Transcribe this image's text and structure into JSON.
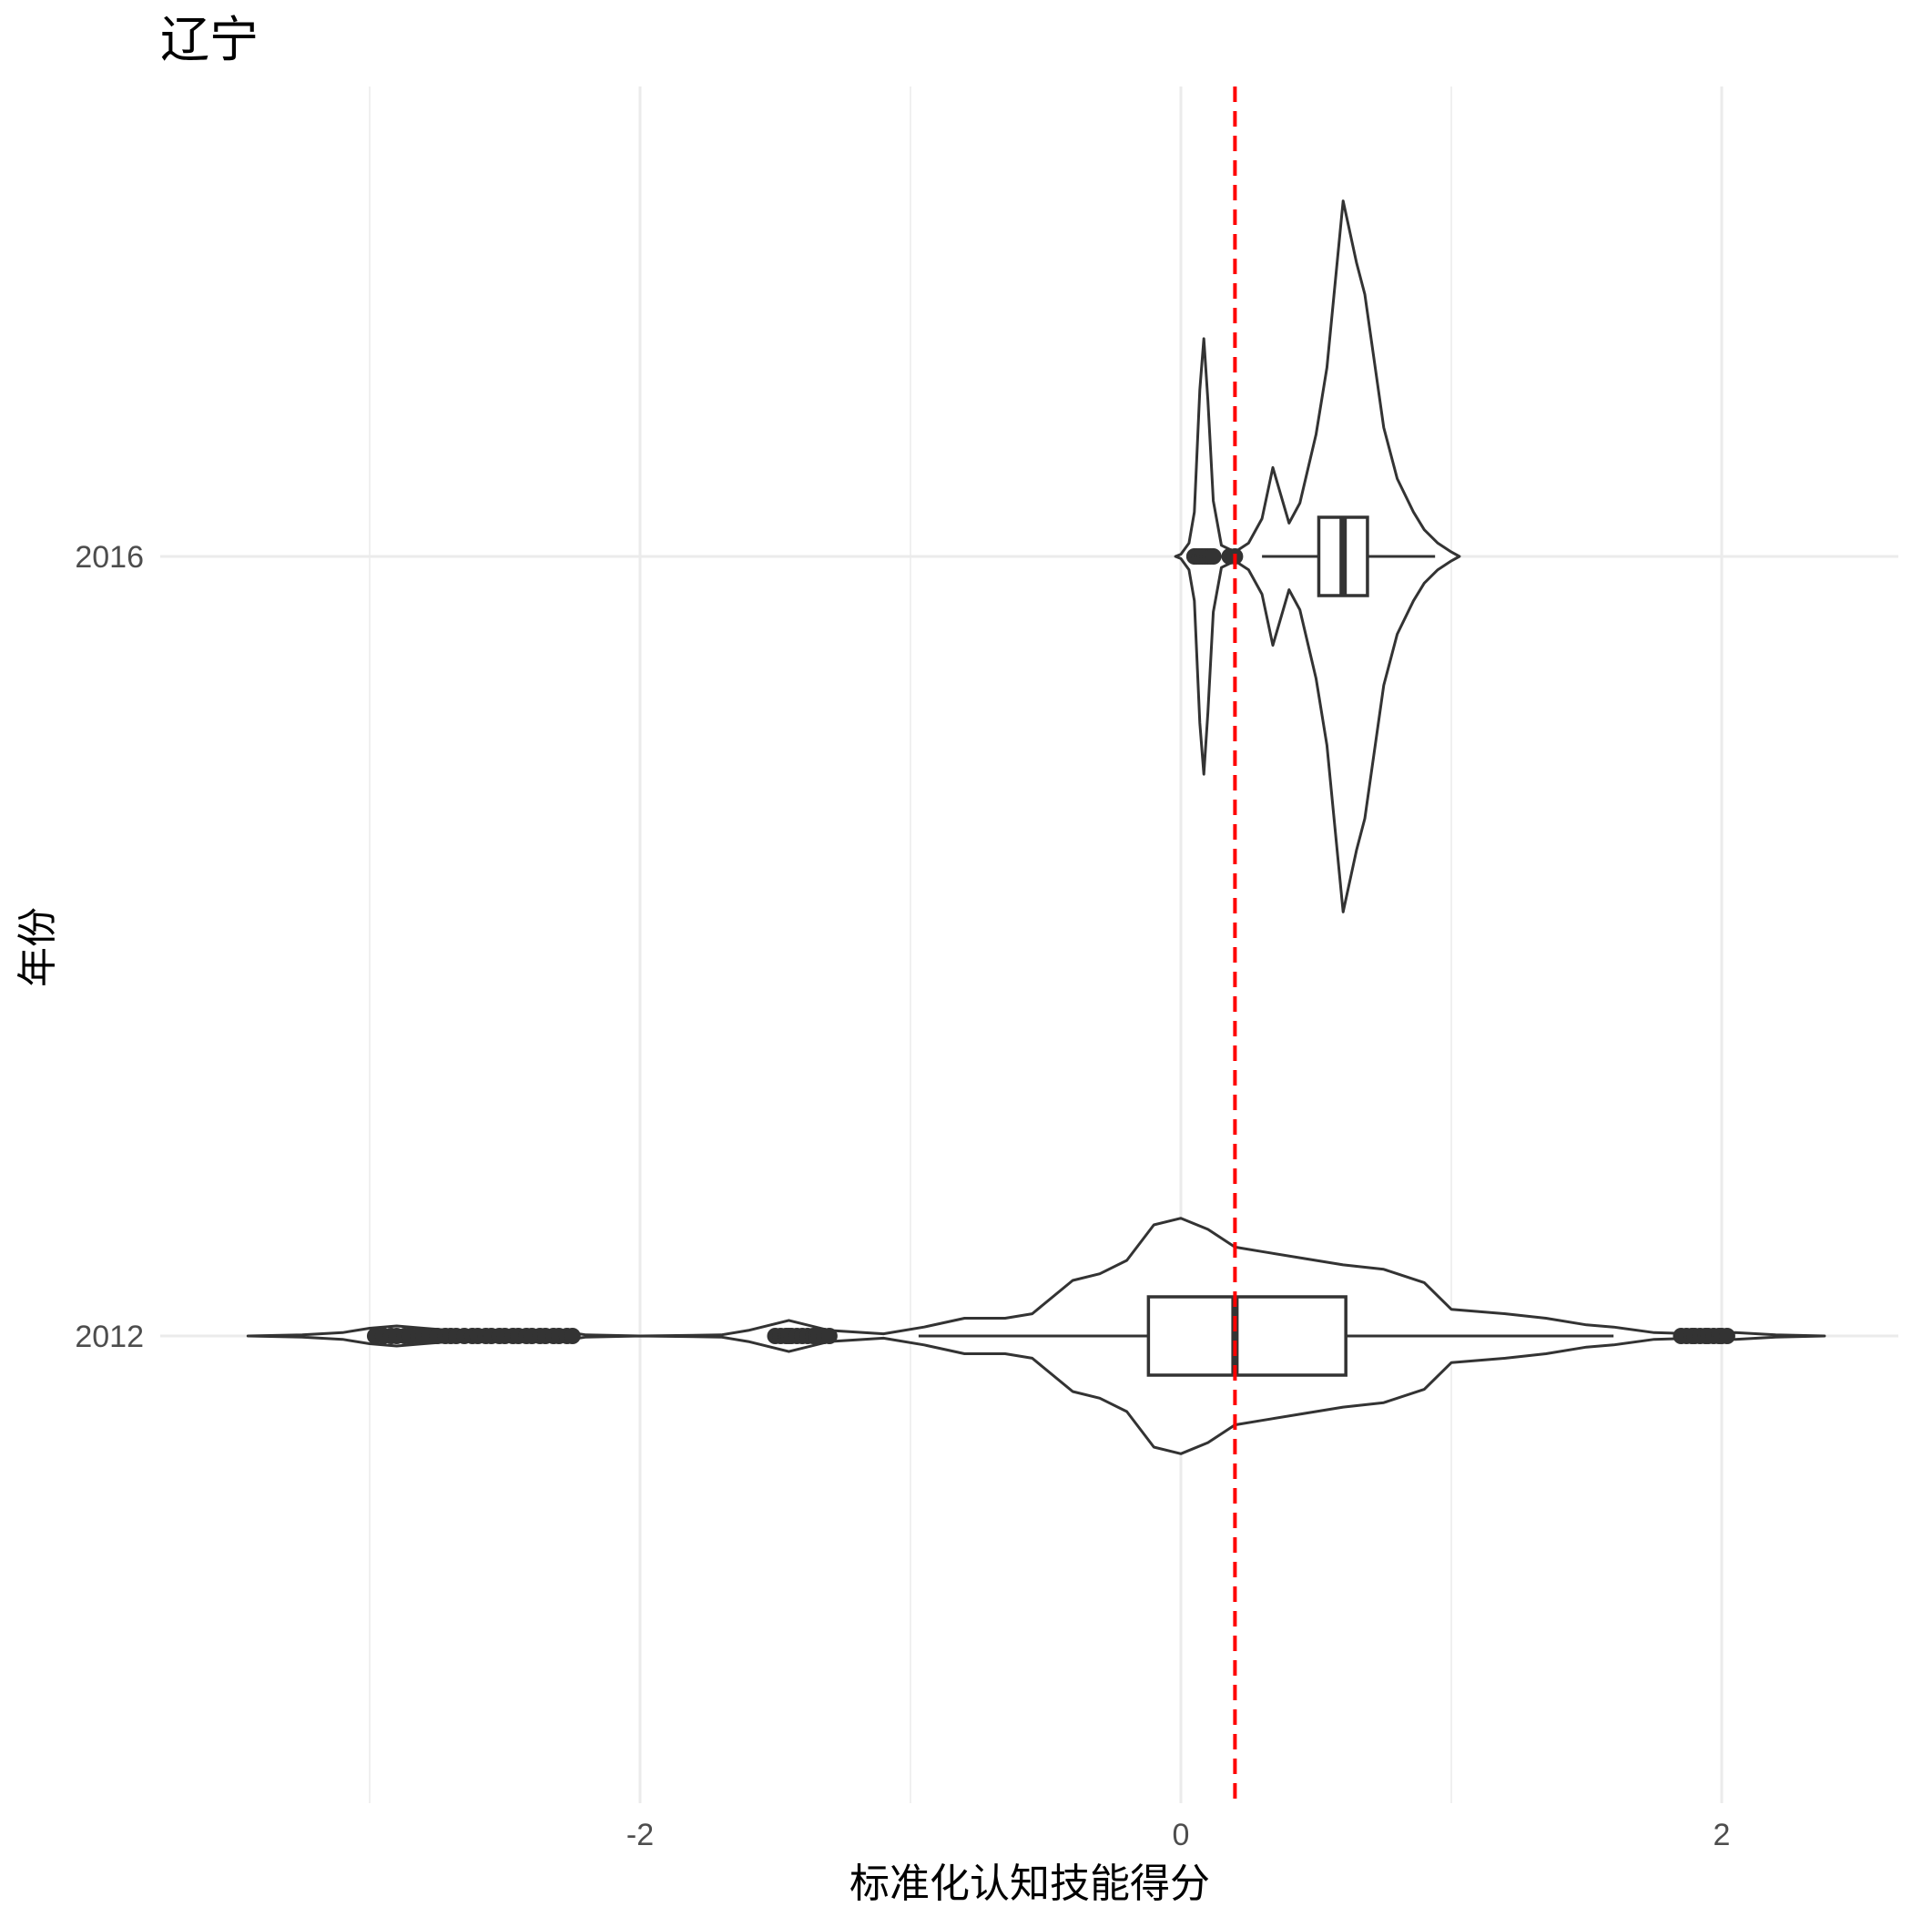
{
  "chart_data": {
    "type": "violin",
    "title": "辽宁",
    "xlabel": "标准化认知技能得分",
    "ylabel": "年份",
    "x_ticks": [
      -2,
      0,
      2
    ],
    "x_tick_labels": [
      "-2",
      "0",
      "2"
    ],
    "xlim": [
      -3.45,
      2.65
    ],
    "grid": true,
    "reference_line": {
      "x": 0.2,
      "style": "dashed",
      "color": "#ff0000"
    },
    "outline_color": "#333333",
    "categories": [
      "2016",
      "2012"
    ],
    "series": [
      {
        "year": "2016",
        "box": {
          "q1": 0.51,
          "median": 0.6,
          "q3": 0.69,
          "whisker_low": 0.3,
          "whisker_high": 0.94
        },
        "outliers": [
          0.05,
          0.06,
          0.07,
          0.08,
          0.09,
          0.1,
          0.11,
          0.12,
          0.18,
          0.2
        ],
        "density": [
          [
            -0.02,
            0
          ],
          [
            0,
            0.01
          ],
          [
            0.03,
            0.06
          ],
          [
            0.05,
            0.2
          ],
          [
            0.07,
            0.75
          ],
          [
            0.085,
            0.98
          ],
          [
            0.1,
            0.7
          ],
          [
            0.12,
            0.25
          ],
          [
            0.15,
            0.05
          ],
          [
            0.2,
            0.02
          ],
          [
            0.25,
            0.06
          ],
          [
            0.3,
            0.17
          ],
          [
            0.34,
            0.4
          ],
          [
            0.4,
            0.15
          ],
          [
            0.44,
            0.24
          ],
          [
            0.5,
            0.55
          ],
          [
            0.54,
            0.85
          ],
          [
            0.6,
            1.6
          ],
          [
            0.65,
            1.32
          ],
          [
            0.68,
            1.18
          ],
          [
            0.75,
            0.58
          ],
          [
            0.8,
            0.35
          ],
          [
            0.86,
            0.2
          ],
          [
            0.9,
            0.12
          ],
          [
            0.95,
            0.06
          ],
          [
            1.0,
            0.02
          ],
          [
            1.03,
            0
          ]
        ]
      },
      {
        "year": "2012",
        "box": {
          "q1": -0.12,
          "median": 0.2,
          "q3": 0.61,
          "whisker_low": -0.97,
          "whisker_high": 1.6
        },
        "outliers": [
          -2.98,
          -2.95,
          -2.92,
          -2.9,
          -2.87,
          -2.85,
          -2.82,
          -2.8,
          -2.78,
          -2.75,
          -2.72,
          -2.7,
          -2.68,
          -2.65,
          -2.62,
          -2.6,
          -2.57,
          -2.55,
          -2.52,
          -2.5,
          -2.47,
          -2.45,
          -2.42,
          -2.4,
          -2.37,
          -2.35,
          -2.32,
          -2.3,
          -2.27,
          -2.25,
          -1.5,
          -1.48,
          -1.46,
          -1.45,
          -1.44,
          -1.42,
          -1.4,
          -1.38,
          -1.36,
          -1.35,
          -1.34,
          -1.32,
          -1.3,
          1.85,
          1.87,
          1.89,
          1.9,
          1.92,
          1.94,
          1.95,
          1.97,
          1.99,
          2.0,
          2.02
        ],
        "density": [
          [
            -3.45,
            0
          ],
          [
            -3.25,
            0.005
          ],
          [
            -3.1,
            0.015
          ],
          [
            -3.0,
            0.035
          ],
          [
            -2.9,
            0.045
          ],
          [
            -2.8,
            0.035
          ],
          [
            -2.7,
            0.025
          ],
          [
            -2.6,
            0.01
          ],
          [
            -2.55,
            0.02
          ],
          [
            -2.45,
            0.025
          ],
          [
            -2.35,
            0.02
          ],
          [
            -2.28,
            0.02
          ],
          [
            -2.2,
            0.005
          ],
          [
            -2.0,
            0
          ],
          [
            -1.7,
            0.005
          ],
          [
            -1.6,
            0.025
          ],
          [
            -1.45,
            0.07
          ],
          [
            -1.3,
            0.025
          ],
          [
            -1.1,
            0.01
          ],
          [
            -0.95,
            0.04
          ],
          [
            -0.8,
            0.08
          ],
          [
            -0.65,
            0.08
          ],
          [
            -0.55,
            0.1
          ],
          [
            -0.4,
            0.25
          ],
          [
            -0.3,
            0.28
          ],
          [
            -0.2,
            0.34
          ],
          [
            -0.1,
            0.5
          ],
          [
            0,
            0.53
          ],
          [
            0.1,
            0.48
          ],
          [
            0.2,
            0.4
          ],
          [
            0.3,
            0.38
          ],
          [
            0.45,
            0.35
          ],
          [
            0.6,
            0.32
          ],
          [
            0.75,
            0.3
          ],
          [
            0.9,
            0.24
          ],
          [
            1.0,
            0.12
          ],
          [
            1.2,
            0.1
          ],
          [
            1.35,
            0.08
          ],
          [
            1.5,
            0.05
          ],
          [
            1.6,
            0.04
          ],
          [
            1.75,
            0.015
          ],
          [
            1.9,
            0.01
          ],
          [
            2.05,
            0.015
          ],
          [
            2.2,
            0.005
          ],
          [
            2.38,
            0
          ]
        ]
      }
    ]
  }
}
